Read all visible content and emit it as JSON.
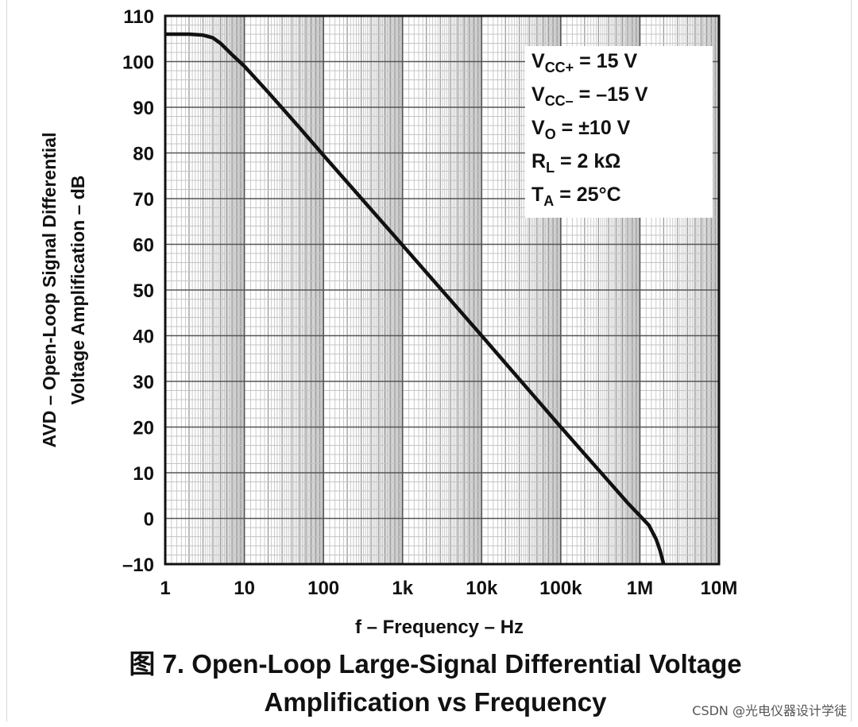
{
  "chart_data": {
    "type": "line",
    "xscale": "log",
    "xlim": [
      1,
      10000000
    ],
    "ylim": [
      -10,
      110
    ],
    "grid": true,
    "xlabel": "f – Frequency – Hz",
    "ylabel_line1": "AVD – Open-Loop Signal Differential",
    "ylabel_line2": "Voltage Amplification – dB",
    "x_tick_labels": [
      {
        "x": 1,
        "label": "1"
      },
      {
        "x": 10,
        "label": "10"
      },
      {
        "x": 100,
        "label": "100"
      },
      {
        "x": 1000,
        "label": "1k"
      },
      {
        "x": 10000,
        "label": "10k"
      },
      {
        "x": 100000,
        "label": "100k"
      },
      {
        "x": 1000000,
        "label": "1M"
      },
      {
        "x": 10000000,
        "label": "10M"
      }
    ],
    "y_ticks": [
      110,
      100,
      90,
      80,
      70,
      60,
      50,
      40,
      30,
      20,
      10,
      0,
      -10
    ],
    "y_tick_labels": [
      "110",
      "100",
      "90",
      "80",
      "70",
      "60",
      "50",
      "40",
      "30",
      "20",
      "10",
      "0",
      "–10"
    ],
    "series": [
      {
        "x": [
          1,
          2,
          3,
          4,
          5,
          7,
          10,
          20,
          50,
          100,
          1000,
          10000,
          100000,
          700000,
          1000000,
          1300000,
          1600000,
          1800000,
          2000000
        ],
        "y": [
          106,
          106,
          105.8,
          105.2,
          104,
          101.5,
          99,
          93.3,
          85.5,
          79.5,
          59.8,
          40,
          20,
          3.4,
          0.6,
          -1.5,
          -4.5,
          -7,
          -10
        ]
      }
    ],
    "legend_placement": "top-right",
    "conditions": [
      {
        "main": "V",
        "sub": "CC+",
        "rest": " = 15 V"
      },
      {
        "main": "V",
        "sub": "CC–",
        "rest": " = –15 V"
      },
      {
        "main": "V",
        "sub": "O",
        "rest": " = ±10 V"
      },
      {
        "main": "R",
        "sub": "L",
        "rest": " = 2 kΩ"
      },
      {
        "main": "T",
        "sub": "A",
        "rest": " = 25°C"
      }
    ]
  },
  "caption": {
    "line1": "图 7. Open-Loop Large-Signal Differential Voltage",
    "line2": "Amplification vs Frequency"
  },
  "watermark": "CSDN @光电仪器设计学徒"
}
